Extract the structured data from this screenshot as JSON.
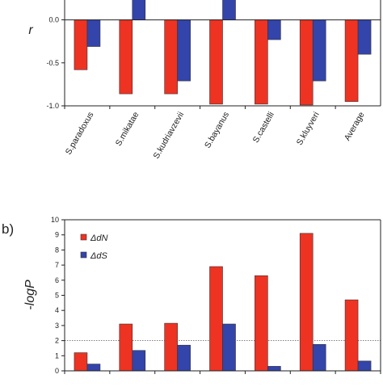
{
  "figure": {
    "panel_b_label": "b)"
  },
  "chart_data": [
    {
      "type": "bar",
      "panel": "a",
      "ylabel": "r",
      "ylim": [
        -1.0,
        0.4
      ],
      "yticks": [
        -1.0,
        -0.5,
        0.0
      ],
      "ytick_labels": [
        "-1.0",
        "-0.5",
        "0.0"
      ],
      "categories": [
        "S.paradoxus",
        "S.mikatae",
        "S.kudriavzevii",
        "S.bayanus",
        "S.castelli",
        "S.kluyveri",
        "Average"
      ],
      "series": [
        {
          "values": [
            -0.58,
            -0.86,
            -0.86,
            -0.98,
            -0.98,
            -0.99,
            -0.95
          ],
          "color": "#ee3322"
        },
        {
          "values": [
            -0.31,
            null,
            -0.71,
            null,
            -0.23,
            -0.71,
            -0.4
          ],
          "color": "#3344aa"
        }
      ],
      "truncated_bars": [
        {
          "category": "S.mikatae",
          "color": "#3344aa"
        },
        {
          "category": "S.bayanus",
          "color": "#3344aa"
        }
      ]
    },
    {
      "type": "bar",
      "panel": "b",
      "ylabel": "-logP",
      "ylim": [
        0,
        10
      ],
      "yticks": [
        0,
        1,
        2,
        3,
        4,
        5,
        6,
        7,
        8,
        9,
        10
      ],
      "reference_line": 2,
      "reference_line_style": "dotted",
      "legend": {
        "placement": "top-left",
        "entries": [
          {
            "label": "ΔdN",
            "color": "#ee3322"
          },
          {
            "label": "ΔdS",
            "color": "#3344aa"
          }
        ]
      },
      "series": [
        {
          "name": "ΔdN",
          "values": [
            1.2,
            3.1,
            3.15,
            6.9,
            6.3,
            9.1,
            4.7
          ],
          "color": "#ee3322"
        },
        {
          "name": "ΔdS",
          "values": [
            0.45,
            1.35,
            1.7,
            3.1,
            0.3,
            1.75,
            0.65
          ],
          "color": "#3344aa"
        }
      ]
    }
  ]
}
